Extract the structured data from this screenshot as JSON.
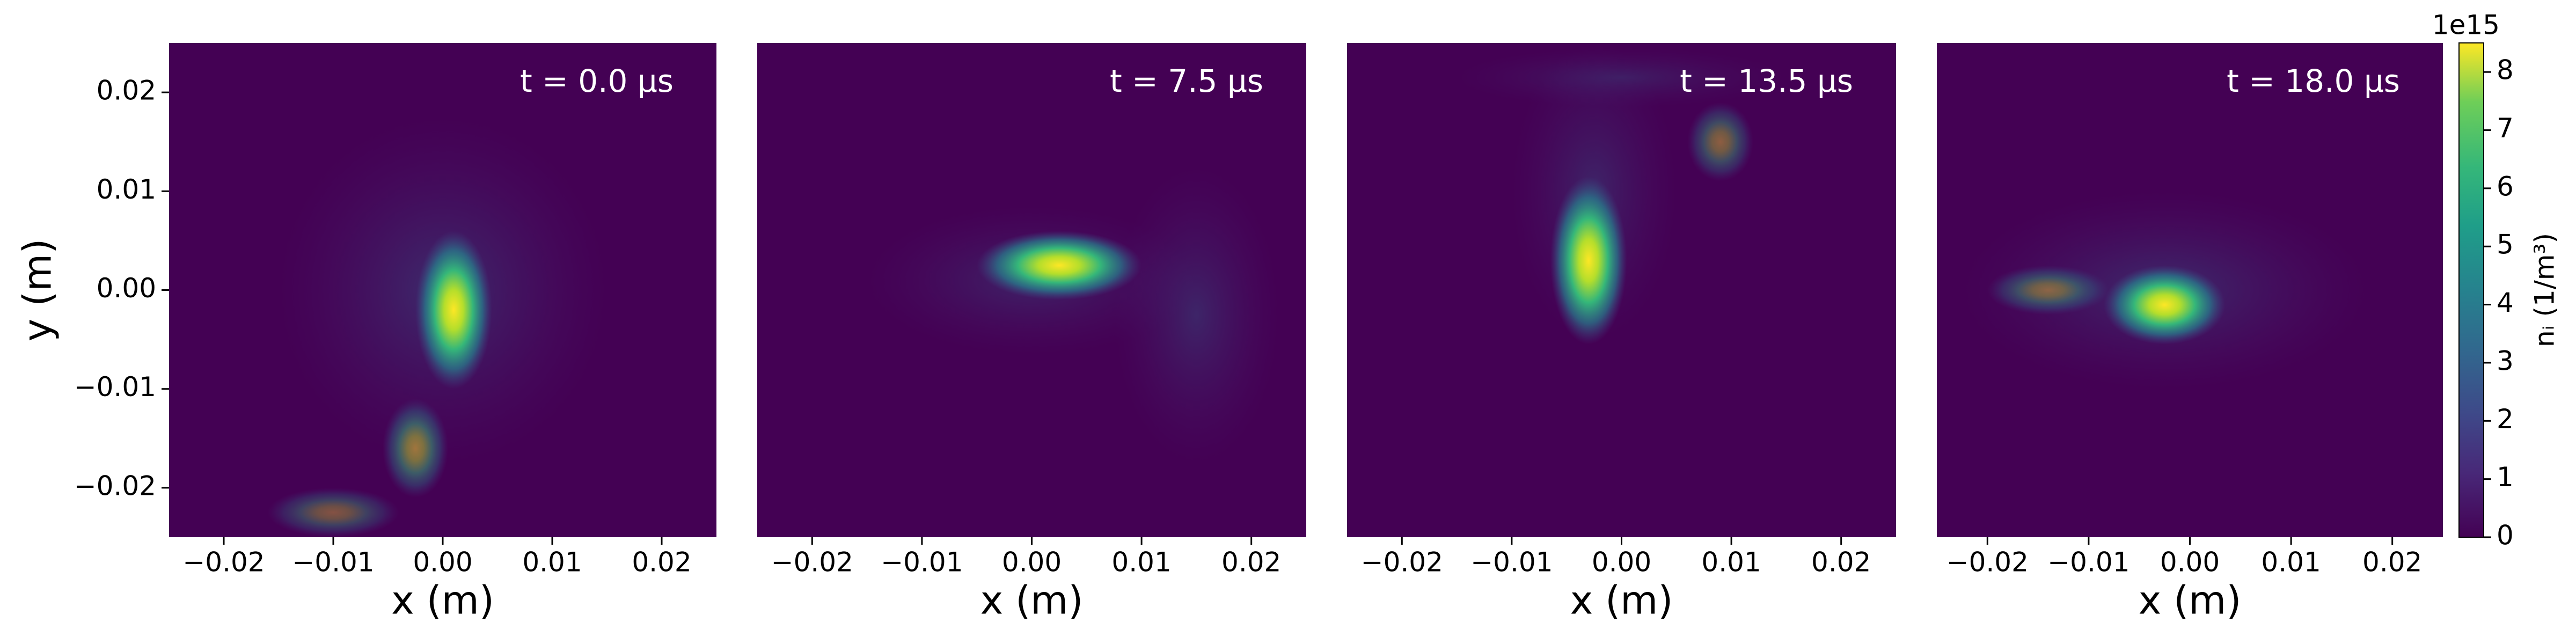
{
  "chart_data": [
    {
      "type": "heatmap",
      "title": "t = 0.0 μs",
      "xlabel": "x (m)",
      "ylabel": "y (m)",
      "xlim": [
        -0.025,
        0.025
      ],
      "xticks": [
        {
          "value": -0.02,
          "label": "−0.02"
        },
        {
          "value": -0.01,
          "label": "−0.01"
        },
        {
          "value": 0,
          "label": "0.00"
        },
        0.01,
        0.02
      ],
      "ylim": [
        -0.025,
        0.025
      ],
      "yticks": [
        {
          "value": -0.02,
          "label": "−0.02"
        },
        {
          "value": -0.01,
          "label": "−0.01"
        },
        {
          "value": 0,
          "label": "0.00"
        },
        0.01,
        0.02
      ]
    },
    {
      "type": "heatmap",
      "title": "t = 7.5 μs",
      "xlabel": "x (m)",
      "xlim": [
        -0.025,
        0.025
      ],
      "xticks": [
        {
          "value": -0.02,
          "label": "−0.02"
        },
        {
          "value": -0.01,
          "label": "−0.01"
        },
        {
          "value": 0,
          "label": "0.00"
        },
        0.01,
        0.02
      ]
    },
    {
      "type": "heatmap",
      "title": "t = 13.5 μs",
      "xlabel": "x (m)",
      "xlim": [
        -0.025,
        0.025
      ],
      "xticks": [
        {
          "value": -0.02,
          "label": "−0.02"
        },
        {
          "value": -0.01,
          "label": "−0.01"
        },
        {
          "value": 0,
          "label": "0.00"
        },
        0.01,
        0.02
      ]
    },
    {
      "type": "heatmap",
      "title": "t = 18.0 μs",
      "xlabel": "x (m)",
      "xlim": [
        -0.025,
        0.025
      ],
      "xticks": [
        {
          "value": -0.02,
          "label": "−0.02"
        },
        {
          "value": -0.01,
          "label": "−0.01"
        },
        {
          "value": 0,
          "label": "0.00"
        },
        0.01,
        0.02
      ]
    }
  ],
  "colorbar": {
    "label": "nᵢ (1/m³)",
    "offset_text": "1e15",
    "lim": [
      0,
      8.5
    ],
    "ticks": [
      0,
      1,
      2,
      3,
      4,
      5,
      6,
      7,
      8
    ]
  }
}
